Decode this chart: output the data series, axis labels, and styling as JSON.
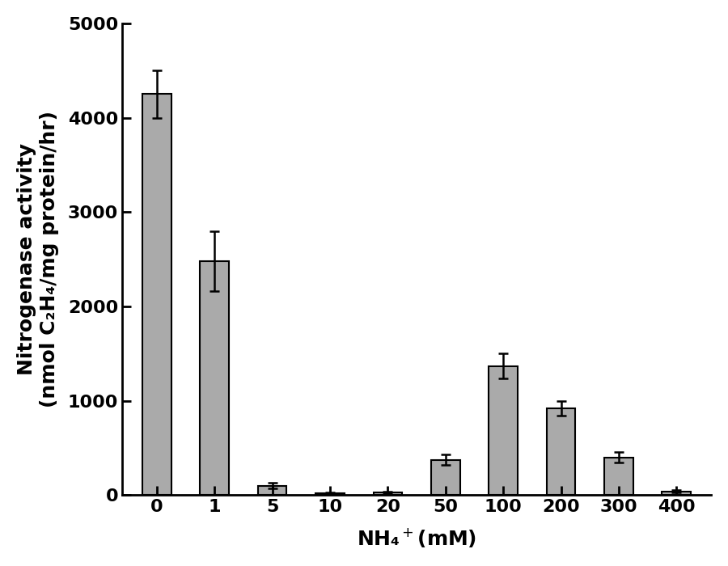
{
  "categories": [
    "0",
    "1",
    "5",
    "10",
    "20",
    "50",
    "100",
    "200",
    "300",
    "400"
  ],
  "values": [
    4250,
    2480,
    100,
    20,
    30,
    375,
    1370,
    920,
    400,
    40
  ],
  "errors": [
    250,
    320,
    30,
    10,
    10,
    55,
    130,
    80,
    55,
    15
  ],
  "bar_color": "#aaaaaa",
  "bar_edgecolor": "#000000",
  "ylabel_line1": "Nitrogenase activity",
  "ylabel_line2": "(nmol C₂H₄/mg protein/hr)",
  "xlabel": "NH₄$^+$(mM)",
  "ylim": [
    0,
    5000
  ],
  "yticks": [
    0,
    1000,
    2000,
    3000,
    4000,
    5000
  ],
  "background_color": "#ffffff",
  "bar_width": 0.5,
  "capsize": 4,
  "label_fontsize": 18,
  "tick_fontsize": 16,
  "figwidth": 9.0,
  "figheight": 7.0,
  "dpi": 100
}
